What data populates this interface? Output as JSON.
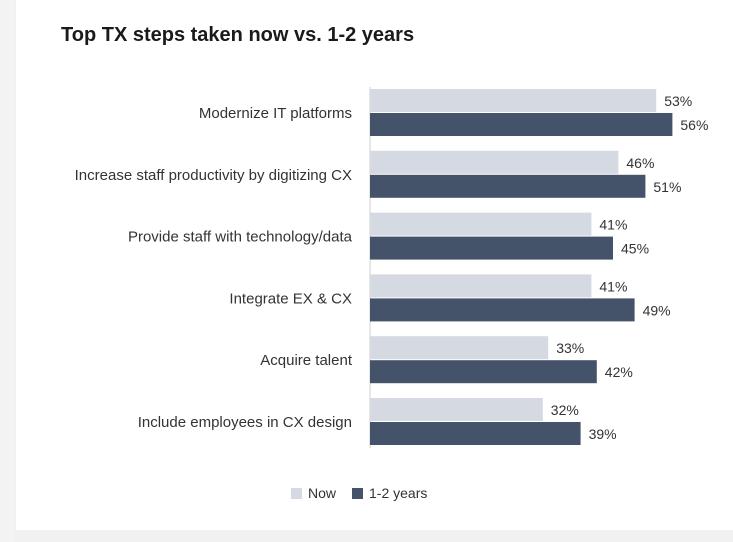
{
  "colors": {
    "now": "#d5d9e1",
    "years": "#45536a"
  },
  "chart_data": {
    "type": "bar",
    "orientation": "horizontal",
    "title": "Top TX steps taken now vs. 1-2 years",
    "categories": [
      "Modernize IT platforms",
      "Increase staff productivity by digitizing CX",
      "Provide staff with technology/data",
      "Integrate EX & CX",
      "Acquire talent",
      "Include employees in CX design"
    ],
    "series": [
      {
        "name": "Now",
        "values": [
          53,
          46,
          41,
          41,
          33,
          32
        ]
      },
      {
        "name": "1-2 years",
        "values": [
          56,
          51,
          45,
          49,
          42,
          39
        ]
      }
    ],
    "value_suffix": "%",
    "xlim": [
      0,
      100
    ],
    "grid": false,
    "legend_position": "bottom"
  }
}
